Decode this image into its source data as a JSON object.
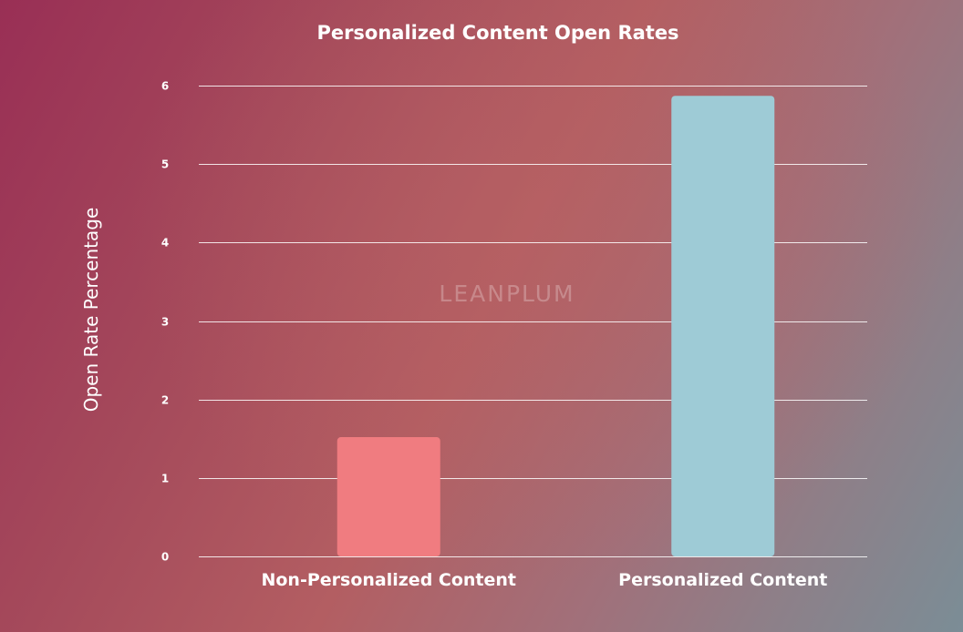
{
  "chart_data": {
    "type": "bar",
    "title": "Personalized Content Open Rates",
    "xlabel": "",
    "ylabel": "Open Rate Percentage",
    "categories": [
      "Non-Personalized Content",
      "Personalized Content"
    ],
    "values": [
      1.52,
      5.87
    ],
    "ylim": [
      0,
      6
    ],
    "yticks": [
      0,
      1,
      2,
      3,
      4,
      5,
      6
    ],
    "grid": true,
    "colors": [
      "#f07c80",
      "#9ecbd6"
    ]
  },
  "watermark": "LEANPLUM"
}
